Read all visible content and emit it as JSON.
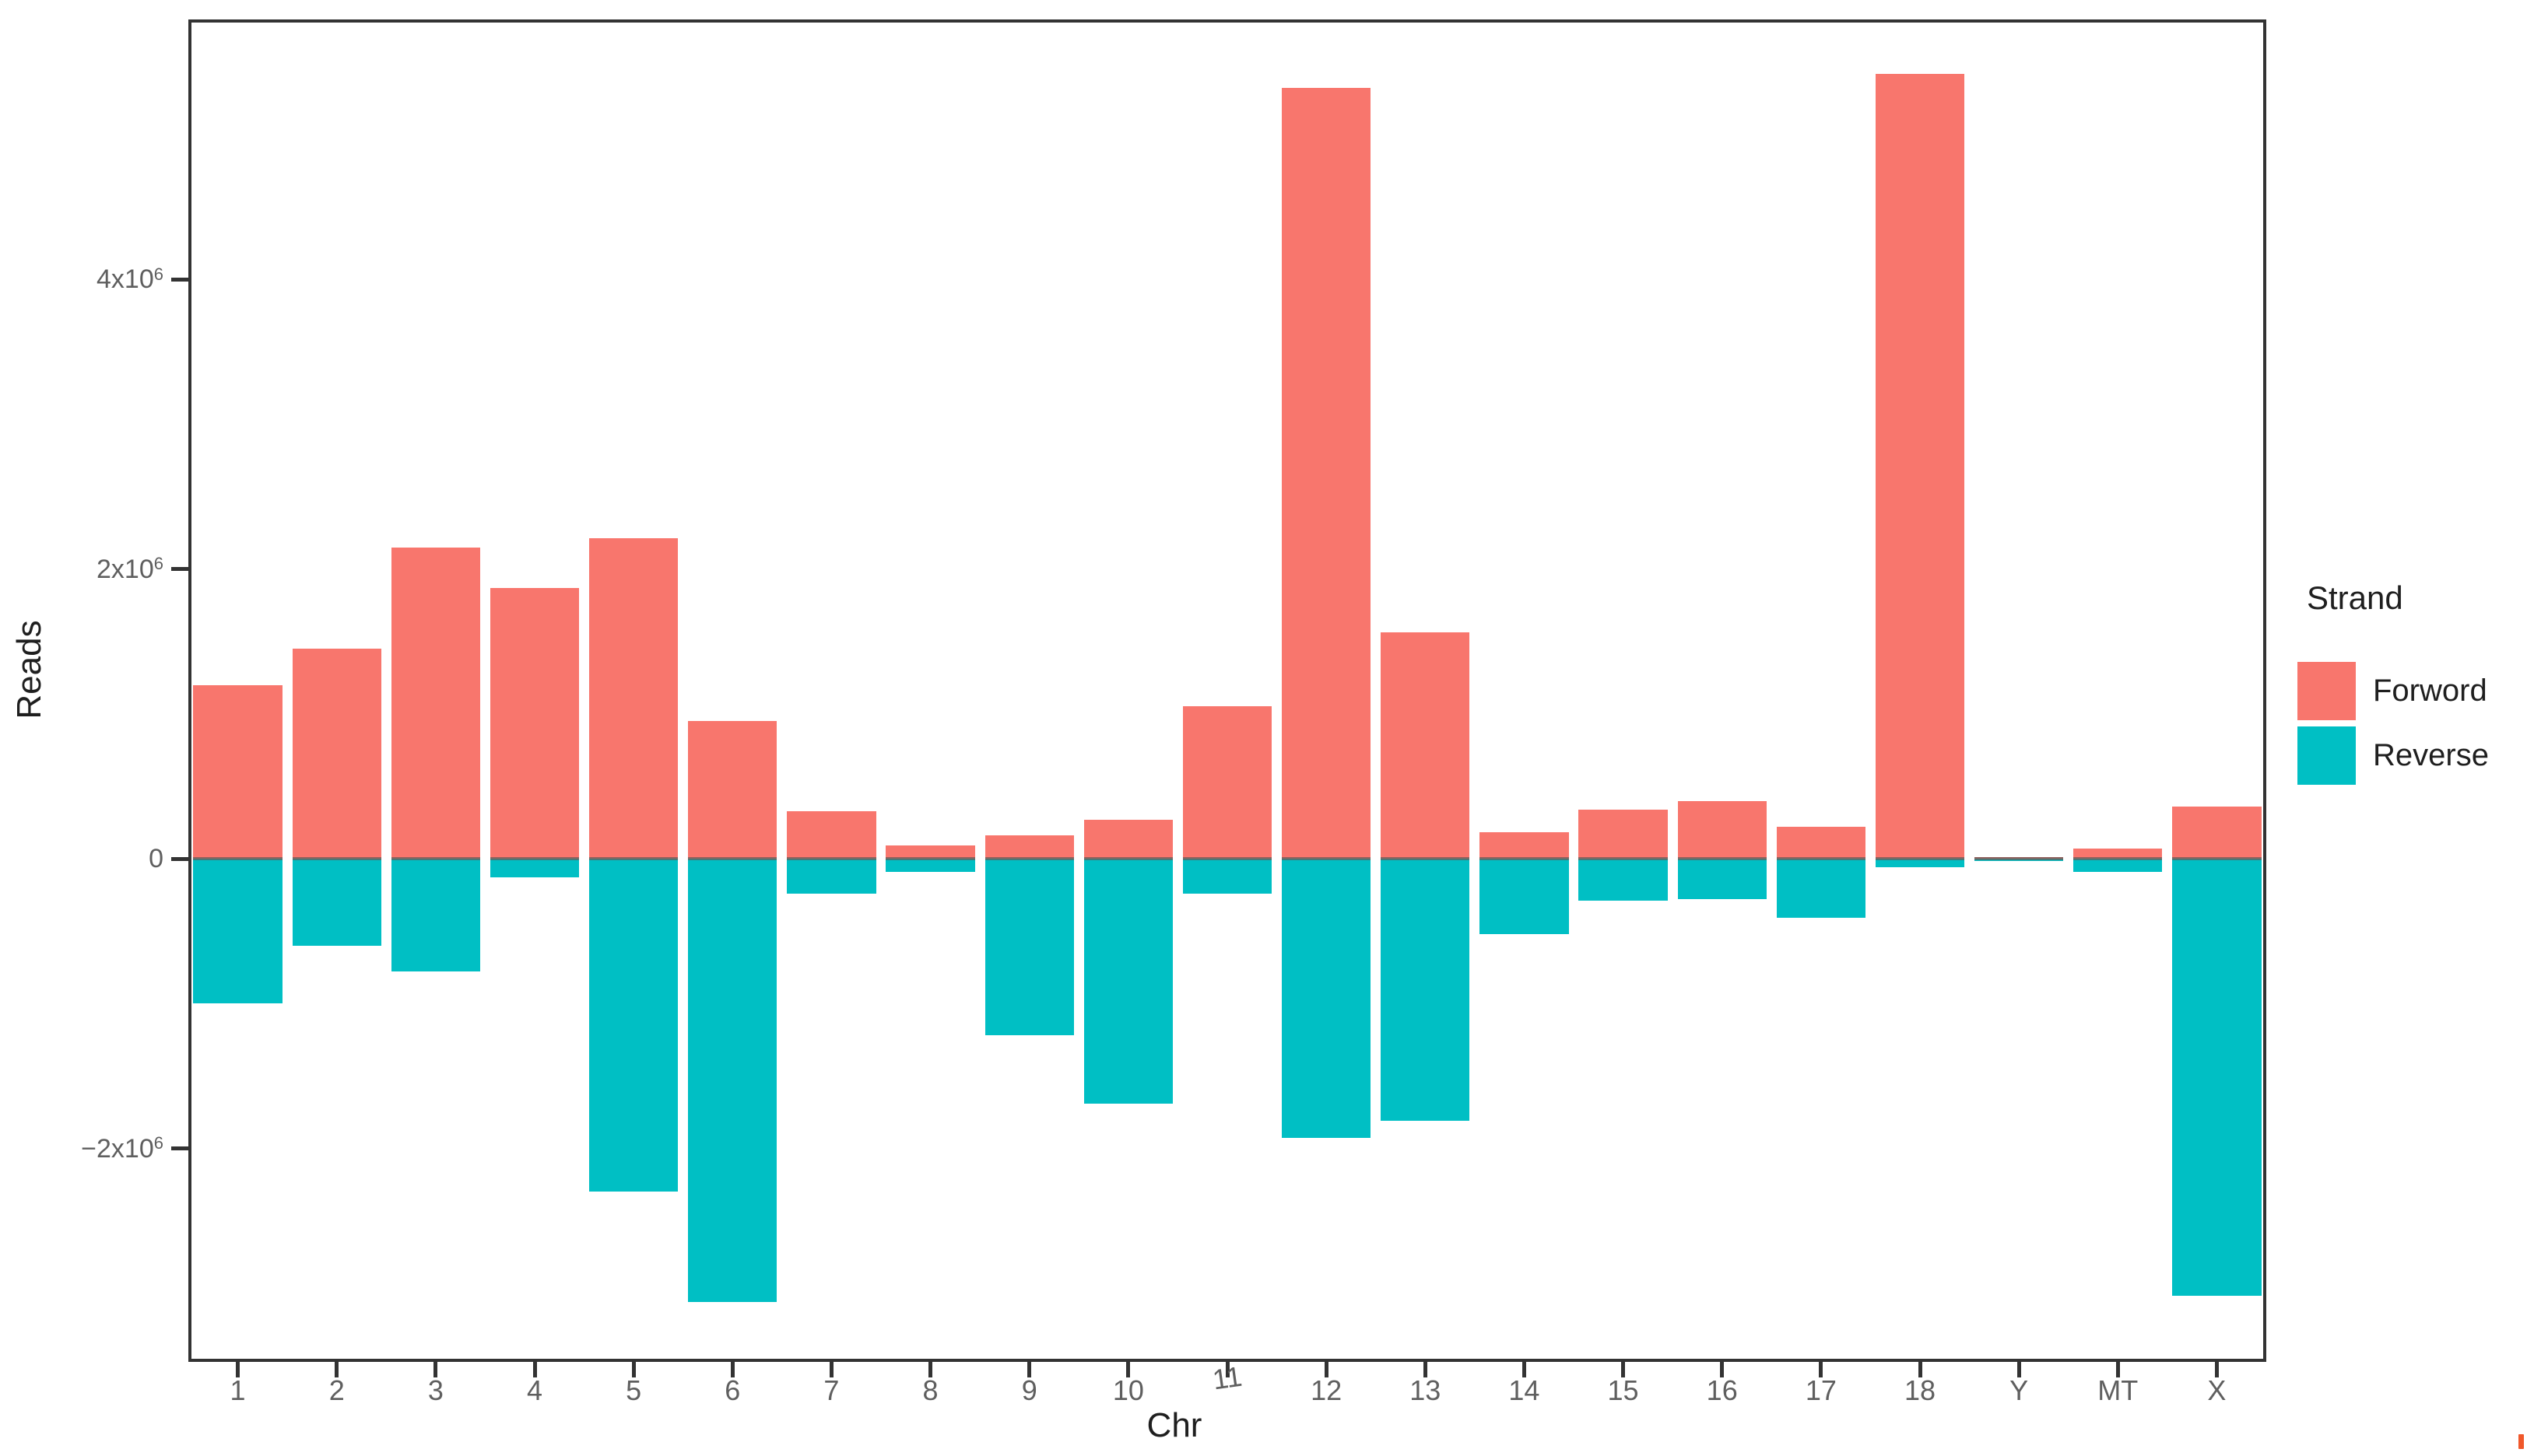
{
  "figure": {
    "background": "#ffffff",
    "panel_border_color": "#333333",
    "axis_text_color": "#5f5f5f",
    "axis_title_color": "#1f1f1f"
  },
  "chart_data": {
    "type": "bar",
    "subtype": "diverging-stranded",
    "title": "",
    "xlabel": "Chr",
    "ylabel": "Reads",
    "categories": [
      "1",
      "2",
      "3",
      "4",
      "5",
      "6",
      "7",
      "8",
      "9",
      "10",
      "11",
      "12",
      "13",
      "14",
      "15",
      "16",
      "17",
      "18",
      "Y",
      "MT",
      "X"
    ],
    "series": [
      {
        "name": "Forword",
        "color": "#F8766D",
        "values": [
          1200000,
          1450000,
          2150000,
          1870000,
          2210000,
          950000,
          330000,
          90000,
          160000,
          270000,
          1050000,
          5320000,
          1560000,
          180000,
          340000,
          400000,
          220000,
          5420000,
          10000,
          70000,
          360000
        ]
      },
      {
        "name": "Reverse",
        "color": "#00BFC4",
        "values": [
          -1000000,
          -600000,
          -780000,
          -130000,
          -2300000,
          -3060000,
          -240000,
          -90000,
          -1220000,
          -1690000,
          -240000,
          -1930000,
          -1810000,
          -520000,
          -290000,
          -280000,
          -410000,
          -60000,
          -15000,
          -90000,
          -3020000
        ]
      }
    ],
    "ylim": [
      -3470000,
      5790000
    ],
    "yticks": [
      {
        "value": -2000000,
        "label": "−2x10",
        "sup": "6"
      },
      {
        "value": 0,
        "label": "0",
        "sup": ""
      },
      {
        "value": 2000000,
        "label": "2x10",
        "sup": "6"
      },
      {
        "value": 4000000,
        "label": "4x10",
        "sup": "6"
      }
    ],
    "grid": false,
    "legend_position": "right"
  },
  "legend": {
    "title": "Strand",
    "items": [
      {
        "label": "Forword",
        "color": "#F8766D"
      },
      {
        "label": "Reverse",
        "color": "#00BFC4"
      }
    ]
  },
  "axes": {
    "x_title": "Chr",
    "y_title": "Reads"
  },
  "artifact": {
    "name": "text-cursor-mark",
    "color": "#F0582B"
  }
}
